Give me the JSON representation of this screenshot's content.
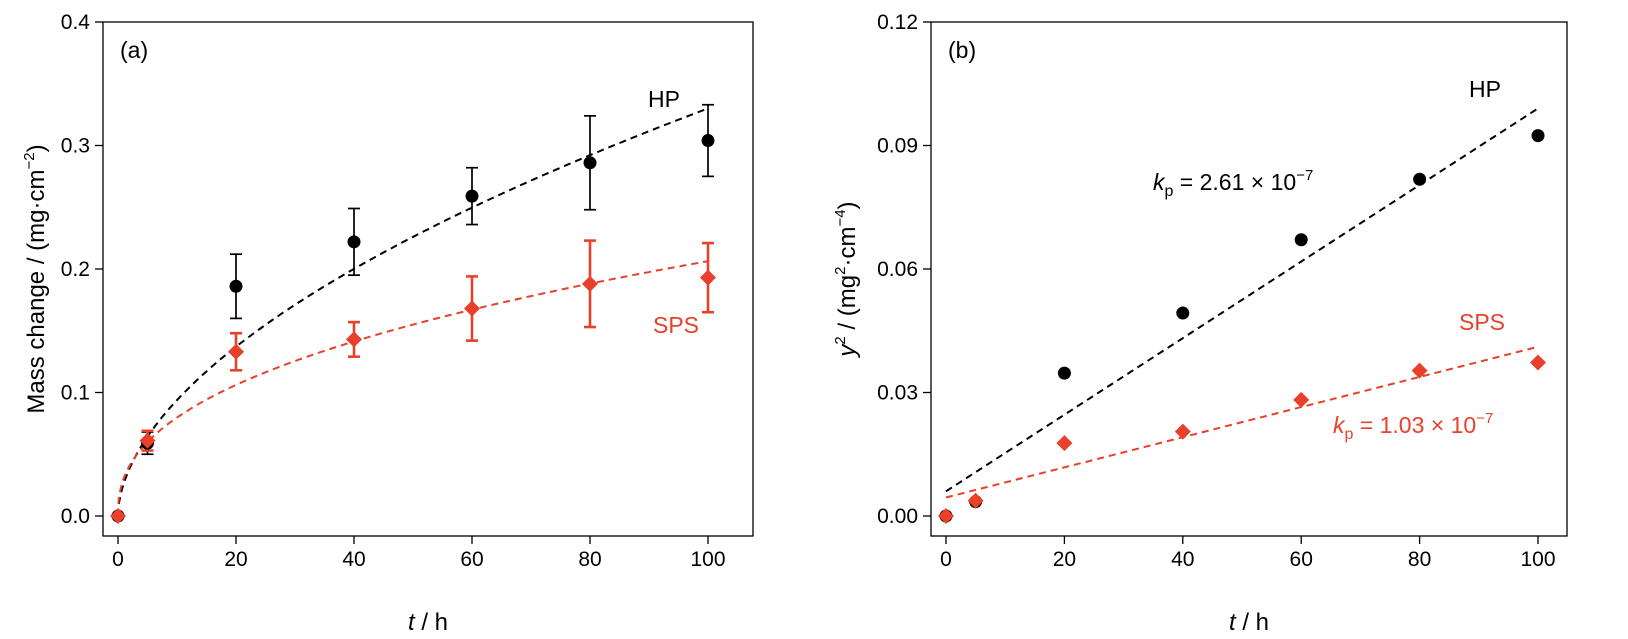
{
  "colors": {
    "hp": "#000000",
    "sps": "#e8402a"
  },
  "chart_data": [
    {
      "type": "scatter",
      "panel_label": "(a)",
      "xlabel_italic": "t",
      "xlabel_rest": " / h",
      "ylabel_prefix": "Mass change / (mg·cm",
      "ylabel_sup": "−2",
      "ylabel_suffix": ")",
      "xlim": [
        0,
        100
      ],
      "ylim": [
        0,
        0.4
      ],
      "xticks": [
        0,
        20,
        40,
        60,
        80,
        100
      ],
      "xtick_labels": [
        "0",
        "20",
        "40",
        "60",
        "80",
        "100"
      ],
      "yticks": [
        0,
        0.1,
        0.2,
        0.3,
        0.4
      ],
      "ytick_labels": [
        "0.0",
        "0.1",
        "0.2",
        "0.3",
        "0.4"
      ],
      "grid": false,
      "series": [
        {
          "name": "HP",
          "marker": "circle",
          "x": [
            0,
            5,
            20,
            40,
            60,
            80,
            100
          ],
          "y": [
            0,
            0.059,
            0.186,
            0.222,
            0.259,
            0.286,
            0.304
          ],
          "err": [
            0,
            0.009,
            0.026,
            0.027,
            0.023,
            0.038,
            0.029
          ],
          "fit": {
            "model": "power",
            "a": 0.0267,
            "n": 0.546
          }
        },
        {
          "name": "SPS",
          "marker": "diamond",
          "x": [
            0,
            5,
            20,
            40,
            60,
            80,
            100
          ],
          "y": [
            0,
            0.061,
            0.133,
            0.143,
            0.168,
            0.188,
            0.193
          ],
          "err": [
            0,
            0.008,
            0.015,
            0.014,
            0.026,
            0.035,
            0.028
          ],
          "fit": {
            "model": "power",
            "a": 0.0308,
            "n": 0.413
          }
        }
      ]
    },
    {
      "type": "scatter",
      "panel_label": "(b)",
      "xlabel_italic": "t",
      "xlabel_rest": " / h",
      "ylabel_var": "y",
      "ylabel_var_sup": "2",
      "ylabel_prefix": " / (mg",
      "ylabel_sup1": "2",
      "ylabel_mid": "·cm",
      "ylabel_sup2": "−4",
      "ylabel_suffix": ")",
      "xlim": [
        0,
        100
      ],
      "ylim": [
        0,
        0.12
      ],
      "xticks": [
        0,
        20,
        40,
        60,
        80,
        100
      ],
      "xtick_labels": [
        "0",
        "20",
        "40",
        "60",
        "80",
        "100"
      ],
      "yticks": [
        0,
        0.03,
        0.06,
        0.09,
        0.12
      ],
      "ytick_labels": [
        "0.00",
        "0.03",
        "0.06",
        "0.09",
        "0.12"
      ],
      "grid": false,
      "series": [
        {
          "name": "HP",
          "marker": "circle",
          "x": [
            0,
            5,
            20,
            40,
            60,
            80,
            100
          ],
          "y": [
            0,
            0.0035,
            0.0347,
            0.0493,
            0.0671,
            0.0818,
            0.0924
          ],
          "fit": {
            "model": "linear",
            "intercept": 0.006,
            "slope": 0.00093
          }
        },
        {
          "name": "SPS",
          "marker": "diamond",
          "x": [
            0,
            5,
            20,
            40,
            60,
            80,
            100
          ],
          "y": [
            0,
            0.0037,
            0.0177,
            0.0205,
            0.0282,
            0.0353,
            0.0373
          ],
          "fit": {
            "model": "linear",
            "intercept": 0.0045,
            "slope": 0.000366
          }
        }
      ],
      "annotations": [
        {
          "series": "HP",
          "sym": "k",
          "sub": "p",
          "text": " = 2.61 × 10",
          "sup": "−7"
        },
        {
          "series": "SPS",
          "sym": "k",
          "sub": "p",
          "text": " = 1.03 × 10",
          "sup": "−7"
        }
      ]
    }
  ]
}
